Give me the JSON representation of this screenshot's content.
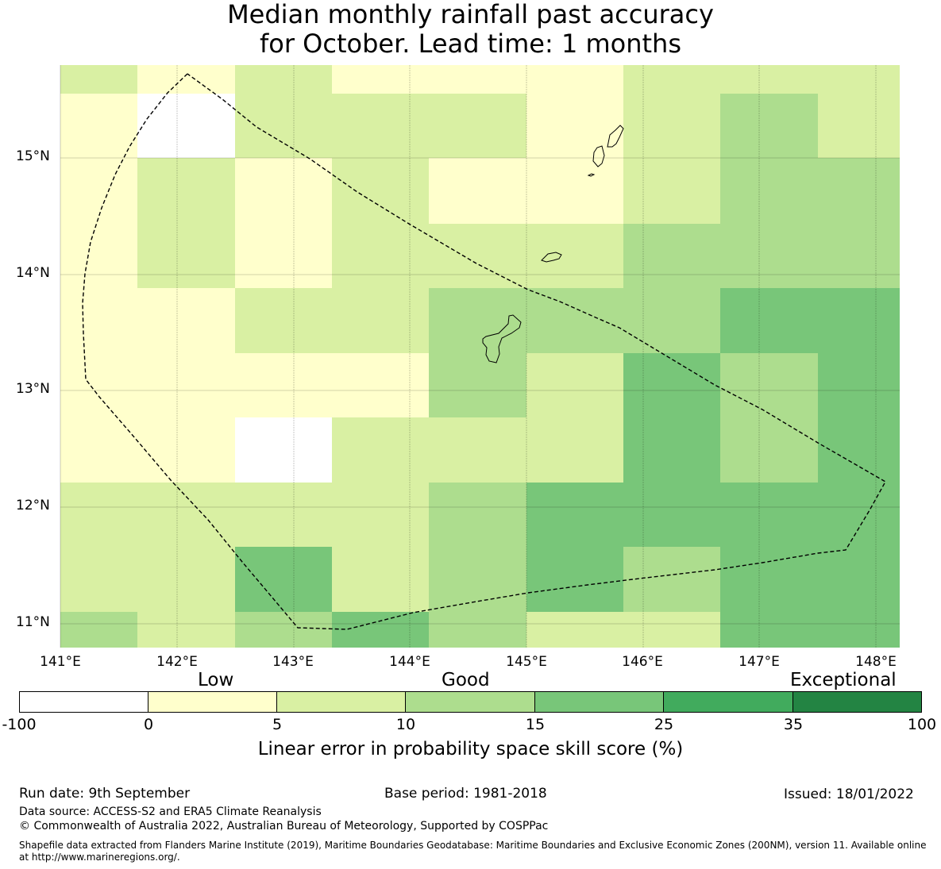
{
  "title": {
    "line1": "Median monthly rainfall past accuracy",
    "line2": "for October. Lead time: 1 months"
  },
  "map": {
    "lat_labels": [
      "15°N",
      "14°N",
      "13°N",
      "12°N",
      "11°N"
    ],
    "lon_labels": [
      "141°E",
      "142°E",
      "143°E",
      "144°E",
      "145°E",
      "146°E",
      "147°E",
      "148°E"
    ],
    "grid_values": [
      [
        8,
        2,
        8,
        2,
        2,
        2,
        8,
        8,
        8
      ],
      [
        2,
        -5,
        8,
        8,
        8,
        2,
        8,
        12,
        8
      ],
      [
        2,
        8,
        2,
        8,
        2,
        2,
        8,
        12,
        12
      ],
      [
        2,
        8,
        2,
        8,
        8,
        8,
        12,
        12,
        12
      ],
      [
        2,
        2,
        8,
        8,
        12,
        12,
        12,
        20,
        20
      ],
      [
        2,
        2,
        2,
        2,
        12,
        8,
        20,
        12,
        20
      ],
      [
        2,
        2,
        -5,
        8,
        8,
        8,
        20,
        12,
        20
      ],
      [
        8,
        8,
        8,
        8,
        12,
        20,
        20,
        20,
        20
      ],
      [
        8,
        8,
        20,
        8,
        12,
        20,
        12,
        20,
        20
      ],
      [
        12,
        8,
        12,
        20,
        12,
        8,
        8,
        20,
        20
      ]
    ]
  },
  "legend": {
    "categories": [
      "Low",
      "Good",
      "Exceptional"
    ],
    "ticks": [
      "-100",
      "0",
      "5",
      "10",
      "15",
      "25",
      "35",
      "100"
    ],
    "colors": [
      "#ffffff",
      "#ffffcc",
      "#d9f0a3",
      "#addd8e",
      "#78c679",
      "#41ab5d",
      "#238443"
    ],
    "title": "Linear error in probability space skill score (%)"
  },
  "footer": {
    "run_date": "Run date: 9th September",
    "base_period": "Base period: 1981-2018",
    "issued": "Issued: 18/01/2022",
    "data_source": "Data source: ACCESS-S2 and ERA5 Climate Reanalysis",
    "copyright": "© Commonwealth of Australia 2022, Australian Bureau of Meteorology, Supported by COSPPac",
    "shapefile": "Shapefile data extracted from Flanders Marine Institute (2019), Maritime Boundaries Geodatabase: Maritime Boundaries and Exclusive Economic Zones (200NM), version 11. Available online at http://www.marineregions.org/."
  }
}
